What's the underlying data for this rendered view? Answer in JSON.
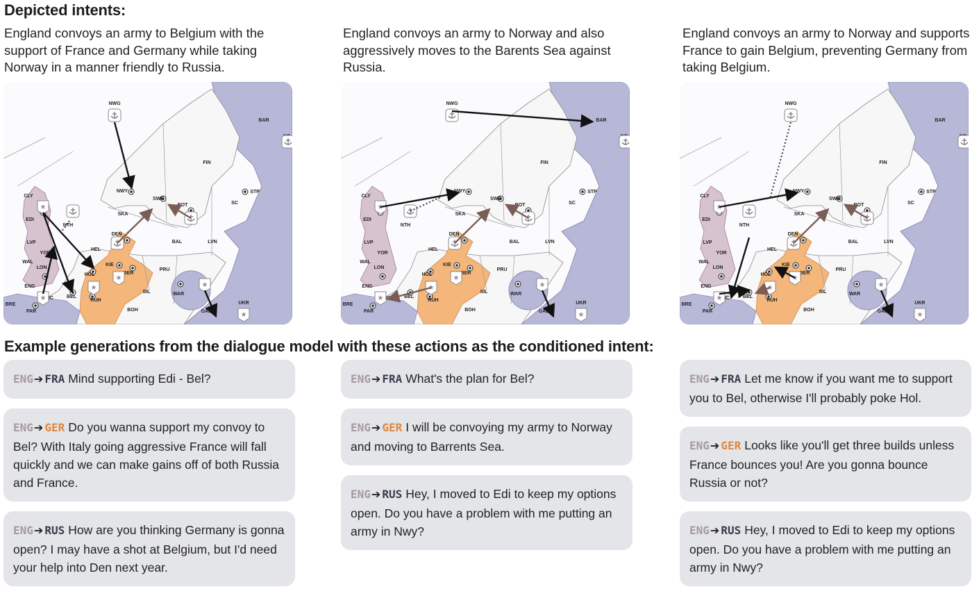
{
  "headings": {
    "depicted": "Depicted intents:",
    "examples": "Example generations from the dialogue model with these actions as the conditioned intent:"
  },
  "colors": {
    "england": "#d7c3d0",
    "germany": "#f4b67a",
    "russia": "#b7b7d8",
    "france": "#b8b8d9",
    "neutral": "#f7f7f8",
    "bubble": "#e4e5e9"
  },
  "map_labels": [
    "NWG",
    "BAR",
    "NC",
    "FIN",
    "NWY",
    "SWE",
    "BOT",
    "STP",
    "SC",
    "CLY",
    "EDI",
    "NTH",
    "SKA",
    "DEN",
    "LVP",
    "YOR",
    "HEL",
    "BAL",
    "LVN",
    "WAL",
    "LON",
    "KIE",
    "BER",
    "PRU",
    "HOL",
    "ENG",
    "BEL",
    "RUH",
    "SIL",
    "WAR",
    "PIC",
    "BRE",
    "PAR",
    "BOH",
    "UKR",
    "GAL"
  ],
  "columns": [
    {
      "intent": "England convoys an army to Belgium with the support of France and Germany while taking Norway in a manner friendly to Russia.",
      "messages": [
        {
          "from": "ENG",
          "to": "FRA",
          "text": "Mind supporting Edi - Bel?"
        },
        {
          "from": "ENG",
          "to": "GER",
          "text": "Do you wanna support my convoy to Bel? With Italy going aggressive France will fall quickly and we can make gains off of both Russia and France."
        },
        {
          "from": "ENG",
          "to": "RUS",
          "text": "How are you thinking Germany is gonna open? I may have a shot at Belgium, but I'd need your help into Den next year."
        }
      ]
    },
    {
      "intent": "England convoys an army to Norway and also aggressively moves to the Barents Sea against Russia.",
      "messages": [
        {
          "from": "ENG",
          "to": "FRA",
          "text": "What's the plan for Bel?"
        },
        {
          "from": "ENG",
          "to": "GER",
          "text": "I will be convoying my army to Norway and moving to Barrents Sea."
        },
        {
          "from": "ENG",
          "to": "RUS",
          "text": "Hey, I moved to Edi to keep my options open. Do you have a problem with me putting an army in Nwy?"
        }
      ]
    },
    {
      "intent": "England convoys an army to Norway and supports France to gain Belgium, preventing Germany from taking Belgium.",
      "messages": [
        {
          "from": "ENG",
          "to": "FRA",
          "text": "Let me know if you want me to support you to Bel, otherwise I'll probably poke Hol."
        },
        {
          "from": "ENG",
          "to": "GER",
          "text": "Looks like you'll get three builds unless France bounces you! Are you gonna bounce Russia or not?"
        },
        {
          "from": "ENG",
          "to": "RUS",
          "text": "Hey, I moved to Edi to keep my options open. Do you have a problem with me putting an army in Nwy?"
        }
      ]
    }
  ]
}
